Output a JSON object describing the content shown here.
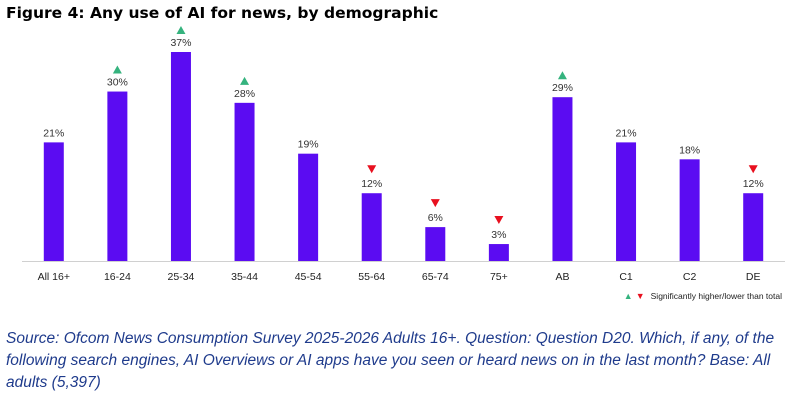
{
  "title": "Figure 4: Any use of AI for news, by demographic",
  "chart_data": {
    "type": "bar",
    "categories": [
      "All 16+",
      "16-24",
      "25-34",
      "35-44",
      "45-54",
      "55-64",
      "65-74",
      "75+",
      "AB",
      "C1",
      "C2",
      "DE"
    ],
    "values": [
      21,
      30,
      37,
      28,
      19,
      12,
      6,
      3,
      29,
      21,
      18,
      12
    ],
    "value_labels": [
      "21%",
      "30%",
      "37%",
      "28%",
      "19%",
      "12%",
      "6%",
      "3%",
      "29%",
      "21%",
      "18%",
      "12%"
    ],
    "significance": [
      "none",
      "higher",
      "higher",
      "higher",
      "none",
      "lower",
      "lower",
      "lower",
      "higher",
      "none",
      "none",
      "lower"
    ],
    "bar_color": "#5b0cf2",
    "higher_color": "#35b37e",
    "lower_color": "#e8101f",
    "ylim": [
      0,
      37
    ],
    "grid": false,
    "legend": "bottom-right",
    "xlabel": "",
    "ylabel": ""
  },
  "legend": {
    "label": "Significantly higher/lower than total"
  },
  "source": "Source: Ofcom News Consumption Survey 2025-2026 Adults 16+. Question: Question D20. Which, if any, of the following search engines, AI Overviews or AI apps have you seen or heard news on in the last month? Base: All adults (5,397)"
}
